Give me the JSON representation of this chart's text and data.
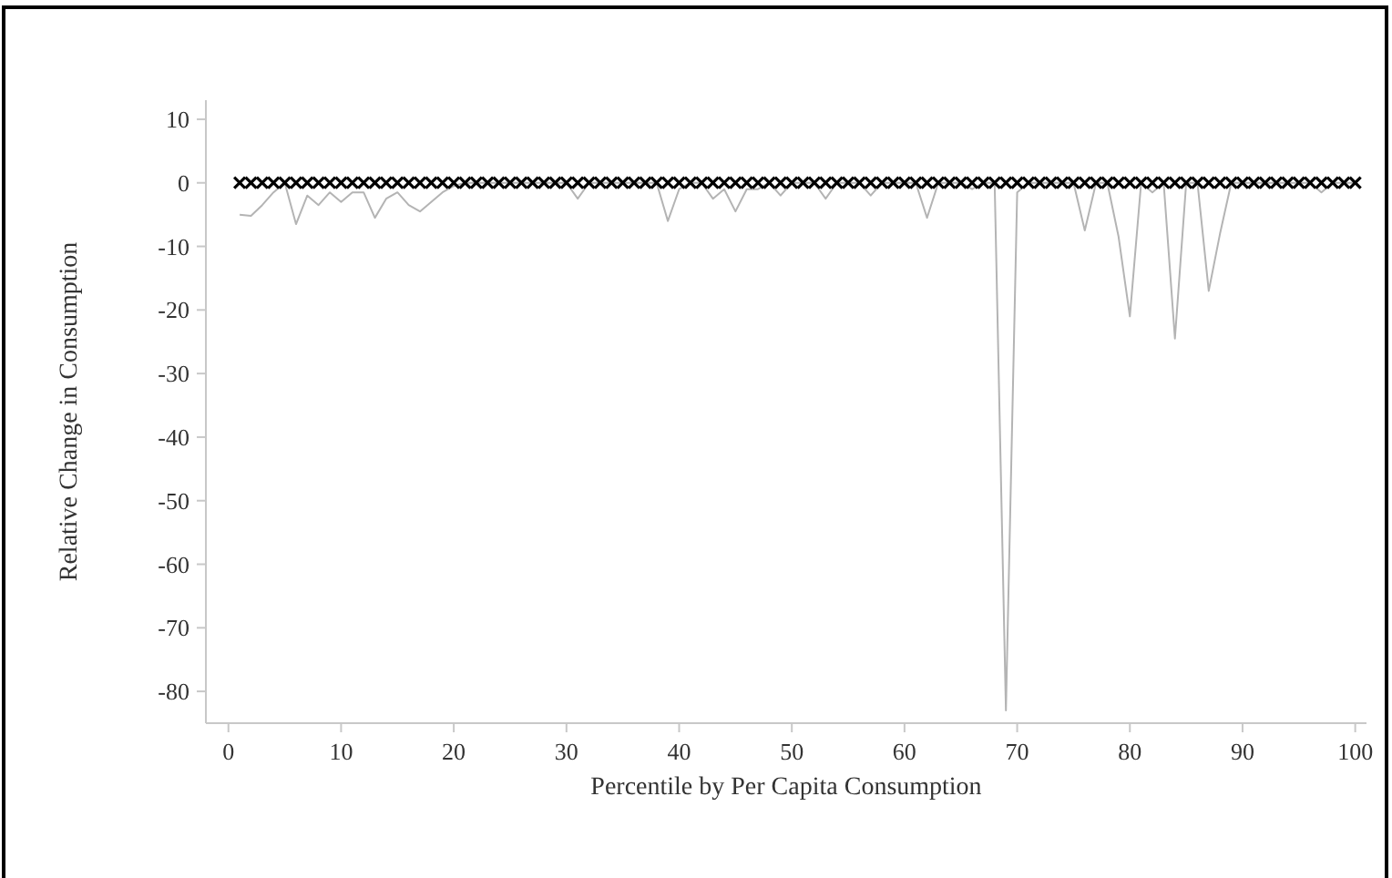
{
  "chart_data": {
    "type": "line",
    "xlabel": "Percentile by Per Capita Consumption",
    "ylabel": "Relative Change in Consumption",
    "x": [
      1,
      2,
      3,
      4,
      5,
      6,
      7,
      8,
      9,
      10,
      11,
      12,
      13,
      14,
      15,
      16,
      17,
      18,
      19,
      20,
      21,
      22,
      23,
      24,
      25,
      26,
      27,
      28,
      29,
      30,
      31,
      32,
      33,
      34,
      35,
      36,
      37,
      38,
      39,
      40,
      41,
      42,
      43,
      44,
      45,
      46,
      47,
      48,
      49,
      50,
      51,
      52,
      53,
      54,
      55,
      56,
      57,
      58,
      59,
      60,
      61,
      62,
      63,
      64,
      65,
      66,
      67,
      68,
      69,
      70,
      71,
      72,
      73,
      74,
      75,
      76,
      77,
      78,
      79,
      80,
      81,
      82,
      83,
      84,
      85,
      86,
      87,
      88,
      89,
      90,
      91,
      92,
      93,
      94,
      95,
      96,
      97,
      98,
      99,
      100
    ],
    "series": [
      {
        "color": "#b4b4b4",
        "marker": "none",
        "values": [
          -5,
          -5.2,
          -3.5,
          -1.5,
          0,
          -6.5,
          -2,
          -3.5,
          -1.5,
          -3,
          -1.5,
          -1.5,
          -5.5,
          -2.5,
          -1.5,
          -3.5,
          -4.5,
          -3,
          -1.5,
          -0.5,
          0,
          0,
          0,
          0,
          0,
          0,
          0,
          0,
          0,
          0,
          -2.5,
          0,
          0,
          0,
          0,
          0,
          0,
          0,
          -6,
          -1,
          0,
          0,
          -2.5,
          -1,
          -4.5,
          -1,
          -1,
          0,
          -2,
          0,
          0,
          0,
          -2.5,
          0,
          0,
          0,
          -2,
          0,
          0,
          0,
          0,
          -5.5,
          0,
          0,
          0,
          -1,
          0,
          0,
          -83,
          -1.5,
          0,
          0,
          0,
          0,
          0,
          -7.5,
          0,
          0,
          -8.5,
          -21,
          0,
          -1.5,
          0,
          -24.5,
          0,
          0,
          -17,
          -8,
          0,
          0,
          0,
          0,
          0,
          0,
          0,
          0,
          -1.5,
          0,
          0,
          0
        ]
      },
      {
        "type": "scatter",
        "color": "#000000",
        "marker": "cross",
        "values": [
          0,
          0,
          0,
          0,
          0,
          0,
          0,
          0,
          0,
          0,
          0,
          0,
          0,
          0,
          0,
          0,
          0,
          0,
          0,
          0,
          0,
          0,
          0,
          0,
          0,
          0,
          0,
          0,
          0,
          0,
          0,
          0,
          0,
          0,
          0,
          0,
          0,
          0,
          0,
          0,
          0,
          0,
          0,
          0,
          0,
          0,
          0,
          0,
          0,
          0,
          0,
          0,
          0,
          0,
          0,
          0,
          0,
          0,
          0,
          0,
          0,
          0,
          0,
          0,
          0,
          0,
          0,
          0,
          0,
          0,
          0,
          0,
          0,
          0,
          0,
          0,
          0,
          0,
          0,
          0,
          0,
          0,
          0,
          0,
          0,
          0,
          0,
          0,
          0,
          0,
          0,
          0,
          0,
          0,
          0,
          0,
          0,
          0,
          0,
          0
        ]
      }
    ],
    "xlim": [
      -2,
      101
    ],
    "xticks": [
      0,
      10,
      20,
      30,
      40,
      50,
      60,
      70,
      80,
      90,
      100
    ],
    "ylim": [
      -85,
      13
    ],
    "yticks": [
      10,
      0,
      -10,
      -20,
      -30,
      -40,
      -50,
      -60,
      -70,
      -80
    ],
    "grid": false
  }
}
